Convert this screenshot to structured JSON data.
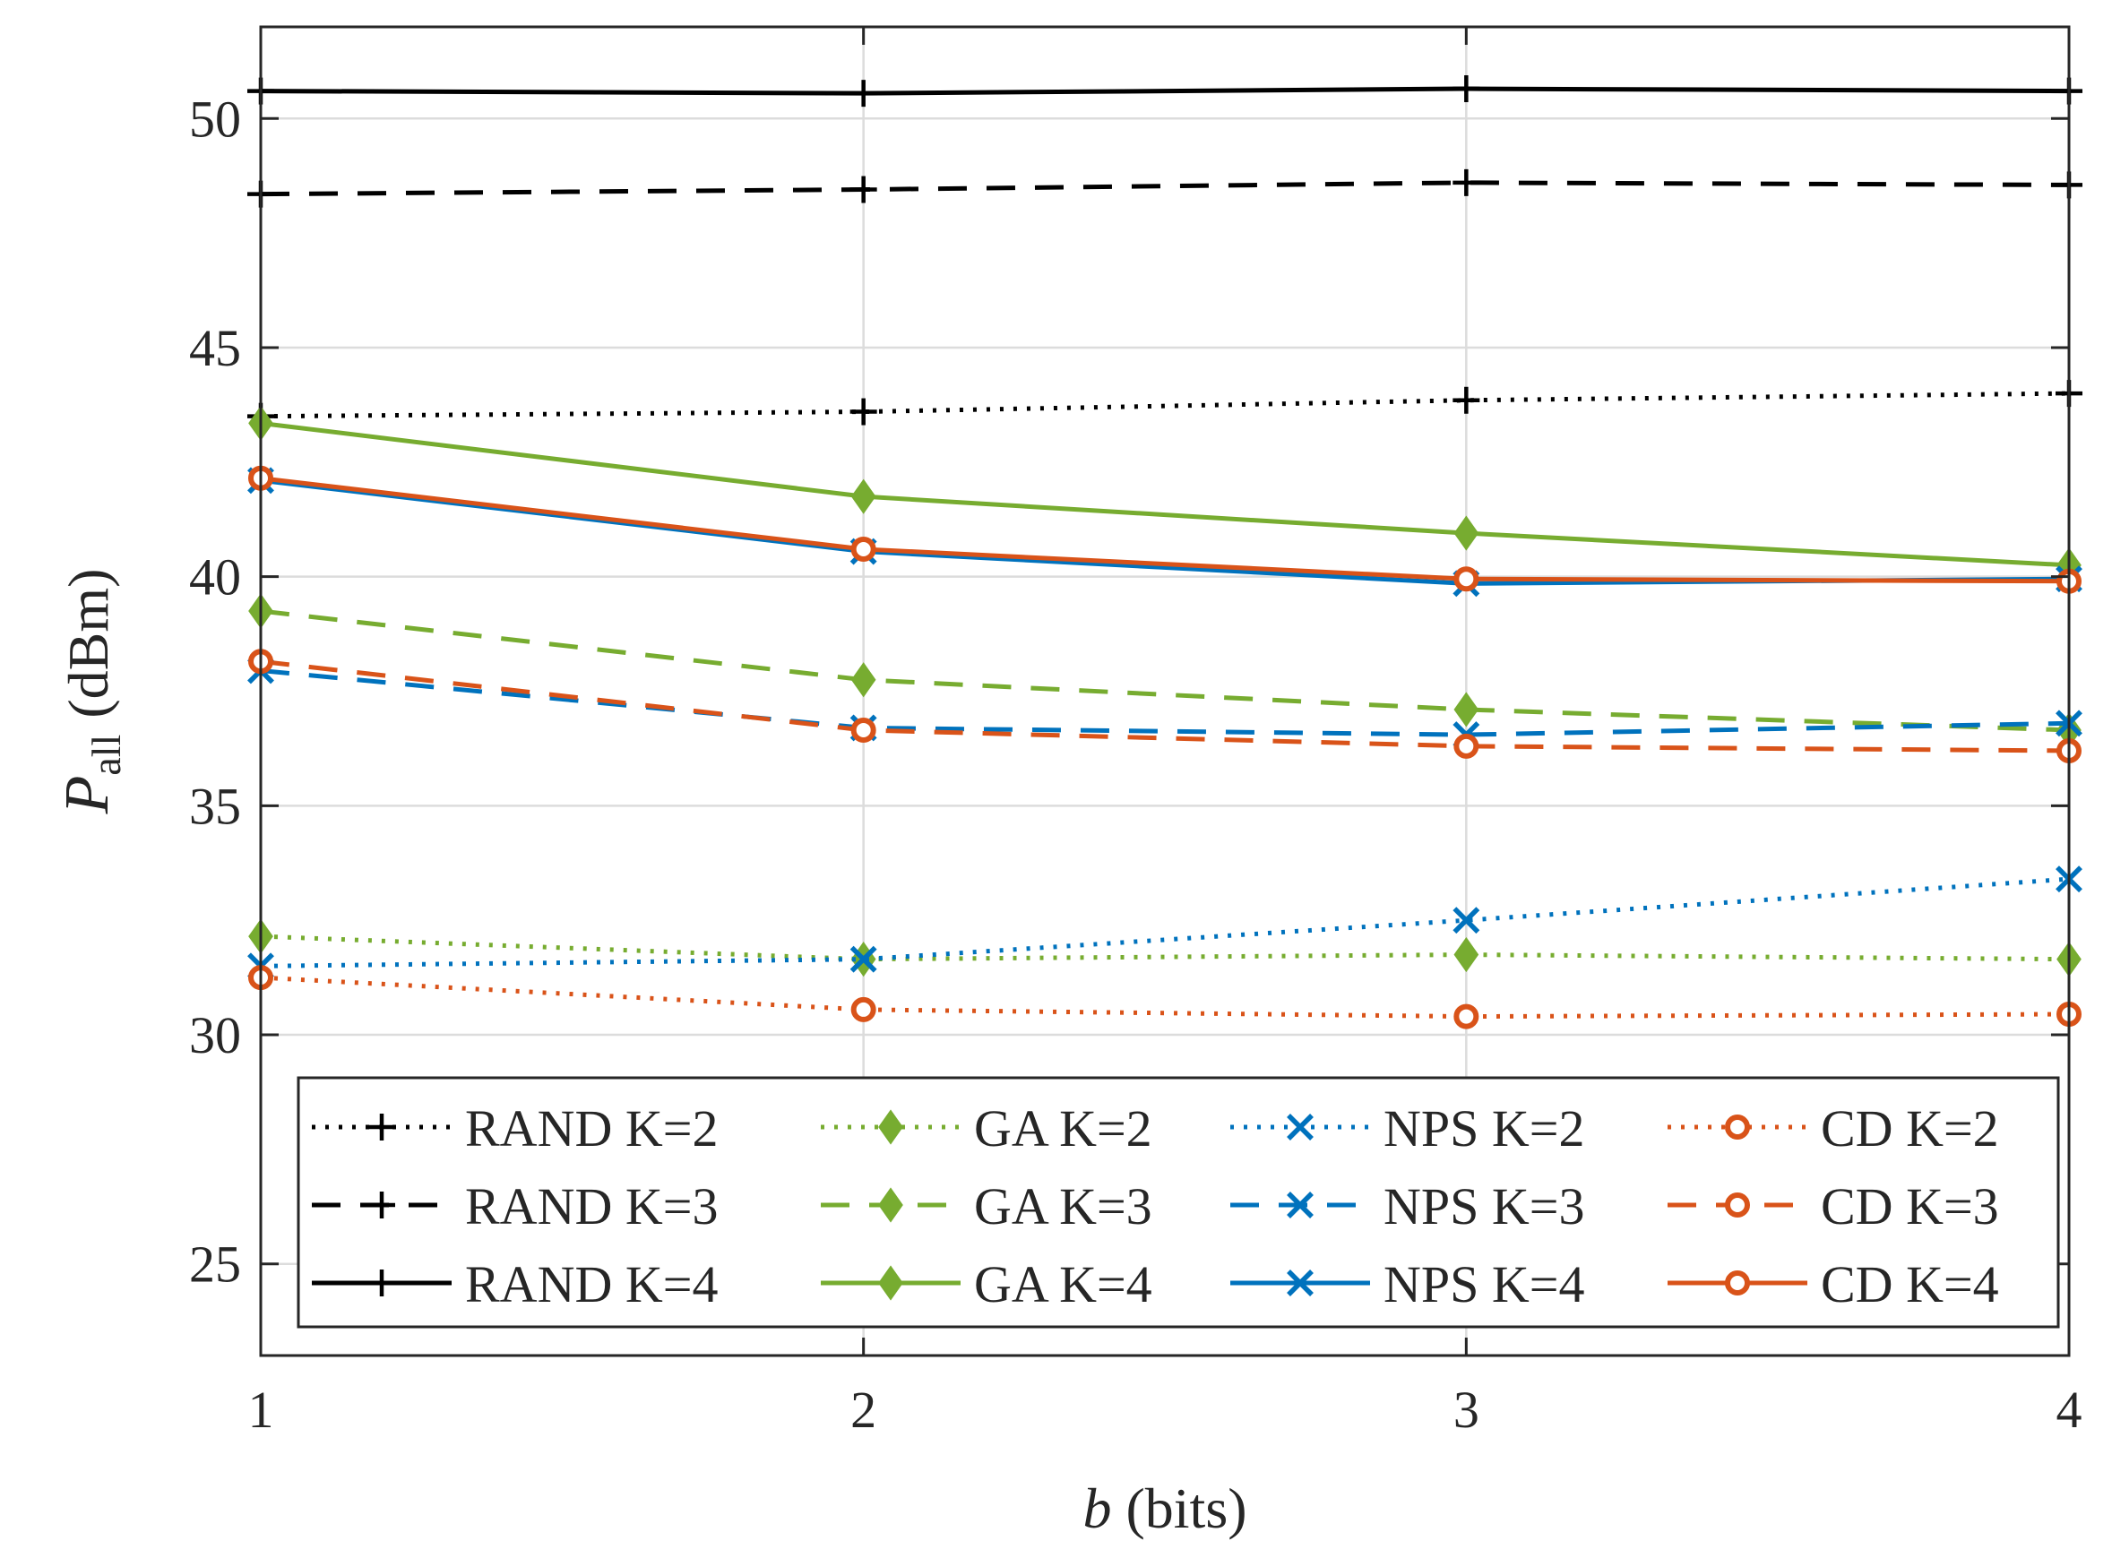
{
  "chart_data": {
    "type": "line",
    "title": "",
    "xlabel": {
      "var": "b",
      "unit": "(bits)"
    },
    "ylabel": {
      "var": "P",
      "sub": "all",
      "unit": "(dBm)"
    },
    "x": [
      1,
      2,
      3,
      4
    ],
    "xlim": [
      1,
      4
    ],
    "ylim": [
      23,
      52
    ],
    "xticks": [
      "1",
      "2",
      "3",
      "4"
    ],
    "yticks": [
      "25",
      "30",
      "35",
      "40",
      "45",
      "50"
    ],
    "grid": true,
    "legend": {
      "placement": "bottom-inside",
      "columns": 4
    },
    "series": [
      {
        "name": "RAND K=2",
        "values": [
          43.5,
          43.6,
          43.85,
          44.0
        ],
        "color": "#000000",
        "dash": "dotted",
        "marker": "plus"
      },
      {
        "name": "RAND K=3",
        "values": [
          48.35,
          48.45,
          48.6,
          48.55
        ],
        "color": "#000000",
        "dash": "dashed",
        "marker": "plus"
      },
      {
        "name": "RAND K=4",
        "values": [
          50.6,
          50.55,
          50.65,
          50.6
        ],
        "color": "#000000",
        "dash": "solid",
        "marker": "plus"
      },
      {
        "name": "GA K=2",
        "values": [
          32.15,
          31.65,
          31.75,
          31.65
        ],
        "color": "#77AC30",
        "dash": "dotted",
        "marker": "diamond"
      },
      {
        "name": "GA K=3",
        "values": [
          39.25,
          37.75,
          37.1,
          36.65
        ],
        "color": "#77AC30",
        "dash": "dashed",
        "marker": "diamond"
      },
      {
        "name": "GA K=4",
        "values": [
          43.35,
          41.75,
          40.95,
          40.25
        ],
        "color": "#77AC30",
        "dash": "solid",
        "marker": "diamond"
      },
      {
        "name": "NPS K=2",
        "values": [
          31.5,
          31.65,
          32.5,
          33.4
        ],
        "color": "#0072BD",
        "dash": "dotted",
        "marker": "x"
      },
      {
        "name": "NPS K=3",
        "values": [
          37.95,
          36.7,
          36.55,
          36.8
        ],
        "color": "#0072BD",
        "dash": "dashed",
        "marker": "x"
      },
      {
        "name": "NPS K=4",
        "values": [
          42.1,
          40.55,
          39.85,
          39.95
        ],
        "color": "#0072BD",
        "dash": "solid",
        "marker": "x"
      },
      {
        "name": "CD K=2",
        "values": [
          31.25,
          30.55,
          30.4,
          30.45
        ],
        "color": "#D95319",
        "dash": "dotted",
        "marker": "circle"
      },
      {
        "name": "CD K=3",
        "values": [
          38.15,
          36.65,
          36.3,
          36.2
        ],
        "color": "#D95319",
        "dash": "dashed",
        "marker": "circle"
      },
      {
        "name": "CD K=4",
        "values": [
          42.15,
          40.6,
          39.95,
          39.9
        ],
        "color": "#D95319",
        "dash": "solid",
        "marker": "circle"
      }
    ]
  }
}
